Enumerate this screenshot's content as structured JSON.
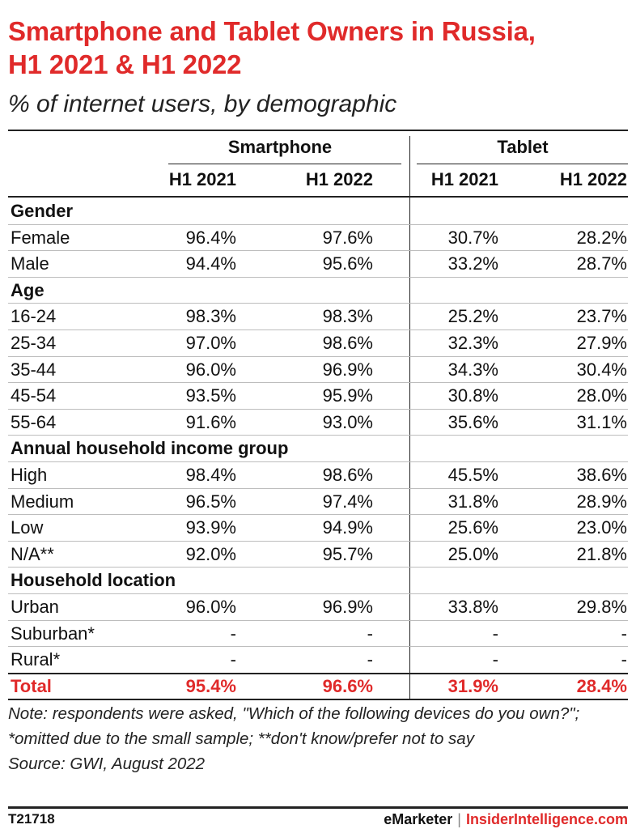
{
  "title": "Smartphone and Tablet Owners in Russia, H1 2021 & H1 2022",
  "subtitle": "% of internet users, by demographic",
  "chart_data": {
    "type": "table",
    "group_headers": [
      "Smartphone",
      "Tablet"
    ],
    "column_headers": [
      "H1 2021",
      "H1 2022",
      "H1 2021",
      "H1 2022"
    ],
    "rows": [
      {
        "kind": "group",
        "label": "Gender"
      },
      {
        "kind": "data",
        "label": "Female",
        "values": [
          "96.4%",
          "97.6%",
          "30.7%",
          "28.2%"
        ]
      },
      {
        "kind": "data",
        "label": "Male",
        "values": [
          "94.4%",
          "95.6%",
          "33.2%",
          "28.7%"
        ]
      },
      {
        "kind": "group",
        "label": "Age"
      },
      {
        "kind": "data",
        "label": "16-24",
        "values": [
          "98.3%",
          "98.3%",
          "25.2%",
          "23.7%"
        ]
      },
      {
        "kind": "data",
        "label": "25-34",
        "values": [
          "97.0%",
          "98.6%",
          "32.3%",
          "27.9%"
        ]
      },
      {
        "kind": "data",
        "label": "35-44",
        "values": [
          "96.0%",
          "96.9%",
          "34.3%",
          "30.4%"
        ]
      },
      {
        "kind": "data",
        "label": "45-54",
        "values": [
          "93.5%",
          "95.9%",
          "30.8%",
          "28.0%"
        ]
      },
      {
        "kind": "data",
        "label": "55-64",
        "values": [
          "91.6%",
          "93.0%",
          "35.6%",
          "31.1%"
        ]
      },
      {
        "kind": "group",
        "label": "Annual household income group"
      },
      {
        "kind": "data",
        "label": "High",
        "values": [
          "98.4%",
          "98.6%",
          "45.5%",
          "38.6%"
        ]
      },
      {
        "kind": "data",
        "label": "Medium",
        "values": [
          "96.5%",
          "97.4%",
          "31.8%",
          "28.9%"
        ]
      },
      {
        "kind": "data",
        "label": "Low",
        "values": [
          "93.9%",
          "94.9%",
          "25.6%",
          "23.0%"
        ]
      },
      {
        "kind": "data",
        "label": "N/A**",
        "values": [
          "92.0%",
          "95.7%",
          "25.0%",
          "21.8%"
        ]
      },
      {
        "kind": "group",
        "label": "Household location"
      },
      {
        "kind": "data",
        "label": "Urban",
        "values": [
          "96.0%",
          "96.9%",
          "33.8%",
          "29.8%"
        ]
      },
      {
        "kind": "data",
        "label": "Suburban*",
        "values": [
          "-",
          "-",
          "-",
          "-"
        ]
      },
      {
        "kind": "data",
        "label": "Rural*",
        "values": [
          "-",
          "-",
          "-",
          "-"
        ]
      },
      {
        "kind": "total",
        "label": "Total",
        "values": [
          "95.4%",
          "96.6%",
          "31.9%",
          "28.4%"
        ]
      }
    ]
  },
  "note": "Note: respondents were asked, \"Which of the following devices do you own?\"; *omitted due to the small sample; **don't know/prefer not to say",
  "source": "Source: GWI, August 2022",
  "footer": {
    "code": "T21718",
    "brand1": "eMarketer",
    "separator": "|",
    "brand2": "InsiderIntelligence.com"
  },
  "colors": {
    "accent": "#e02a2a",
    "text": "#111111",
    "rule": "#222222",
    "row_divider": "#bdbdbd"
  }
}
